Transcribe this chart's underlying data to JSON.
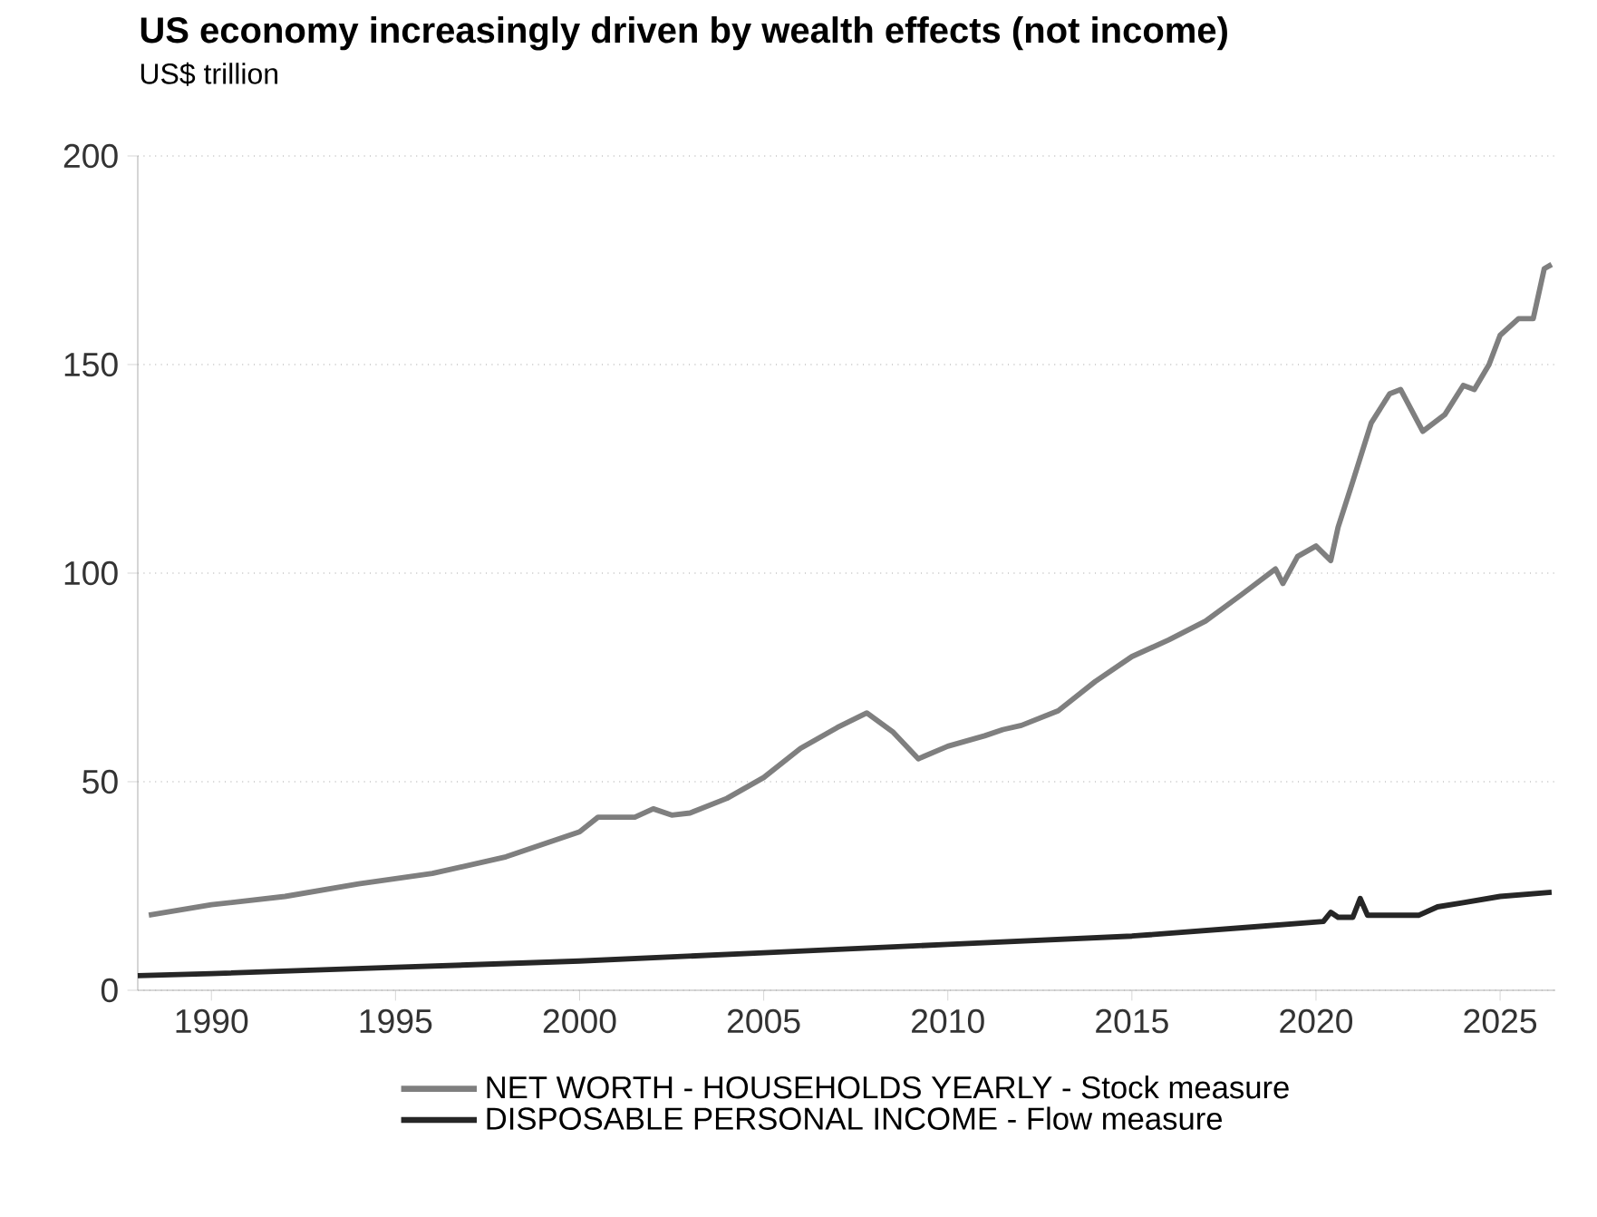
{
  "chart_data": {
    "type": "line",
    "title": "US economy increasingly driven by wealth effects (not income)",
    "subtitle": "US$ trillion",
    "xlim": [
      1988,
      2026.5
    ],
    "xticks": [
      1990,
      1995,
      2000,
      2005,
      2010,
      2015,
      2020,
      2025
    ],
    "ylim": [
      0,
      200
    ],
    "yticks": [
      0,
      50,
      100,
      150,
      200
    ],
    "grid": "y",
    "legend": "bottom",
    "series": [
      {
        "name": "NET WORTH - HOUSEHOLDS YEARLY - Stock measure",
        "color": "#7f7f7f",
        "x": [
          1988.3,
          1990,
          1992,
          1994,
          1996,
          1998,
          1999,
          2000,
          2000.5,
          2001.5,
          2002,
          2002.5,
          2003,
          2004,
          2005,
          2006,
          2007,
          2007.8,
          2008.5,
          2009.2,
          2010,
          2011,
          2011.5,
          2012,
          2013,
          2014,
          2015,
          2016,
          2017,
          2018,
          2018.9,
          2019.1,
          2019.5,
          2020,
          2020.4,
          2020.6,
          2021,
          2021.5,
          2022,
          2022.3,
          2022.9,
          2023.5,
          2024,
          2024.3,
          2024.7,
          2025,
          2025.5,
          2025.9,
          2026.2,
          2026.4
        ],
        "values": [
          18,
          20.5,
          22.5,
          25.5,
          28,
          32,
          35,
          38,
          41.5,
          41.5,
          43.5,
          42,
          42.5,
          46,
          51,
          58,
          63,
          66.5,
          62,
          55.5,
          58.5,
          61,
          62.5,
          63.5,
          67,
          74,
          80,
          84,
          88.5,
          95,
          101,
          97.5,
          104,
          106.5,
          103,
          111,
          122,
          136,
          143,
          144,
          134,
          138,
          145,
          144,
          150,
          157,
          161,
          161,
          173,
          174
        ]
      },
      {
        "name": "DISPOSABLE PERSONAL INCOME - Flow measure",
        "color": "#262626",
        "x": [
          1988,
          1990,
          1995,
          2000,
          2005,
          2010,
          2015,
          2018,
          2020.2,
          2020.4,
          2020.6,
          2021,
          2021.2,
          2021.4,
          2022,
          2022.8,
          2023.3,
          2024,
          2025,
          2026.4
        ],
        "values": [
          3.5,
          4,
          5.5,
          7,
          9,
          11,
          13,
          15,
          16.5,
          18.7,
          17.5,
          17.5,
          22,
          18,
          18,
          18,
          20,
          21,
          22.5,
          23.5
        ]
      }
    ]
  }
}
